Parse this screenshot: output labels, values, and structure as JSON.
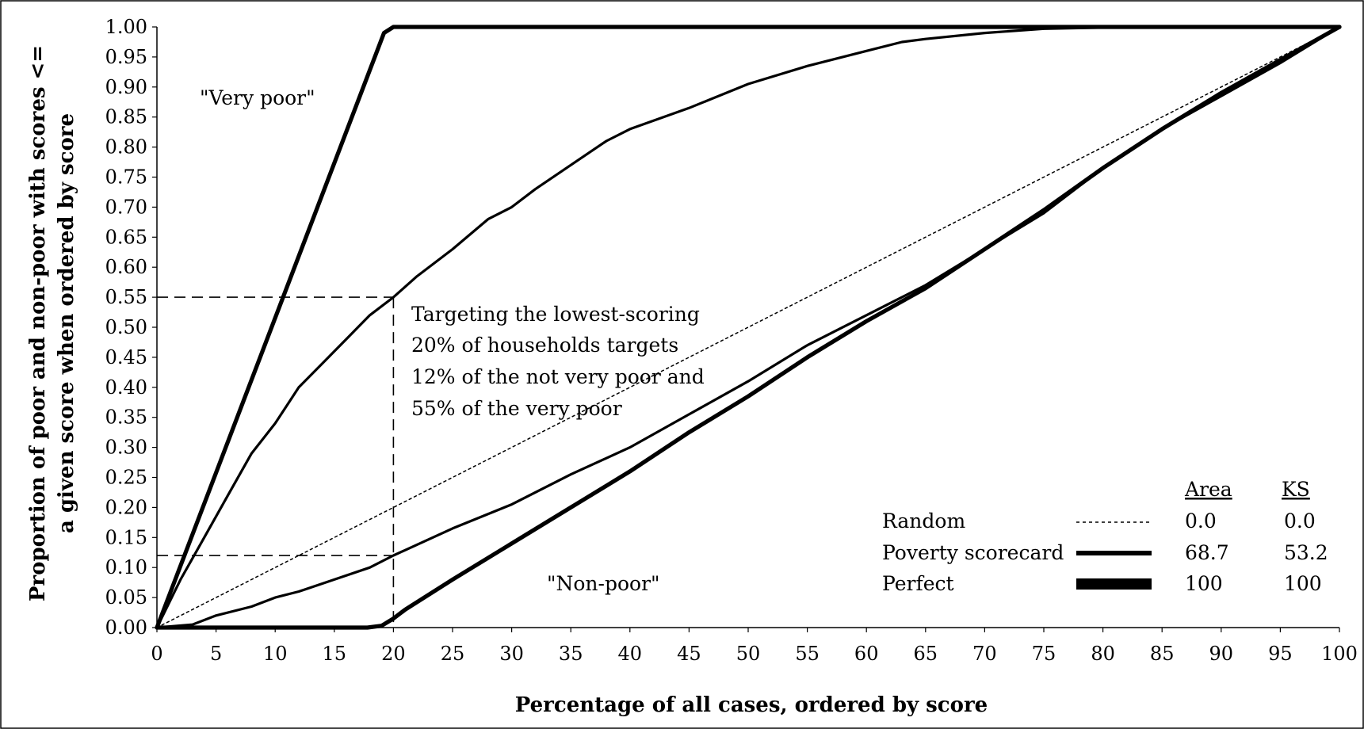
{
  "chart_data": {
    "type": "line",
    "xlabel": "Percentage of all cases, ordered by score",
    "ylabel_line1": "Proportion of poor and non-poor with scores <=",
    "ylabel_line2": "a given score when ordered by score",
    "xlim": [
      0,
      100
    ],
    "ylim": [
      0,
      1
    ],
    "x_ticks": [
      "0",
      "5",
      "10",
      "15",
      "20",
      "25",
      "30",
      "35",
      "40",
      "45",
      "50",
      "55",
      "60",
      "65",
      "70",
      "75",
      "80",
      "85",
      "90",
      "95",
      "100"
    ],
    "y_ticks": [
      "0.00",
      "0.05",
      "0.10",
      "0.15",
      "0.20",
      "0.25",
      "0.30",
      "0.35",
      "0.40",
      "0.45",
      "0.50",
      "0.55",
      "0.60",
      "0.65",
      "0.70",
      "0.75",
      "0.80",
      "0.85",
      "0.90",
      "0.95",
      "1.00"
    ],
    "series": [
      {
        "style": "dotted",
        "x": [
          0,
          100
        ],
        "y": [
          0,
          1
        ]
      },
      {
        "style": "thick",
        "x": [
          0,
          19.2,
          20,
          100
        ],
        "y": [
          0,
          0.99,
          1,
          1
        ]
      },
      {
        "style": "thick",
        "x": [
          0,
          17.8,
          19,
          20,
          21,
          25,
          30,
          35,
          40,
          45,
          50,
          55,
          60,
          65,
          70,
          75,
          80,
          85,
          90,
          95,
          100
        ],
        "y": [
          0,
          0,
          0.003,
          0.015,
          0.03,
          0.08,
          0.14,
          0.2,
          0.26,
          0.325,
          0.385,
          0.45,
          0.51,
          0.565,
          0.63,
          0.695,
          0.765,
          0.83,
          0.89,
          0.945,
          1
        ]
      },
      {
        "style": "medium",
        "x": [
          0,
          2,
          4,
          6,
          8,
          10,
          12,
          14,
          16,
          18,
          20,
          22,
          25,
          28,
          30,
          32,
          35,
          38,
          40,
          45,
          50,
          55,
          60,
          63,
          65,
          70,
          75,
          80,
          85,
          90,
          95,
          100
        ],
        "y": [
          0,
          0.08,
          0.15,
          0.22,
          0.29,
          0.34,
          0.4,
          0.44,
          0.48,
          0.52,
          0.55,
          0.585,
          0.63,
          0.68,
          0.7,
          0.73,
          0.77,
          0.81,
          0.83,
          0.865,
          0.905,
          0.935,
          0.96,
          0.975,
          0.98,
          0.99,
          0.997,
          0.999,
          1,
          1,
          1,
          1
        ]
      },
      {
        "style": "medium",
        "x": [
          0,
          3,
          5,
          8,
          10,
          12,
          15,
          18,
          20,
          25,
          30,
          35,
          40,
          45,
          50,
          55,
          60,
          65,
          70,
          75,
          80,
          85,
          90,
          95,
          100
        ],
        "y": [
          0,
          0.005,
          0.02,
          0.035,
          0.05,
          0.06,
          0.08,
          0.1,
          0.12,
          0.165,
          0.205,
          0.255,
          0.3,
          0.355,
          0.41,
          0.47,
          0.52,
          0.57,
          0.63,
          0.69,
          0.765,
          0.83,
          0.885,
          0.94,
          1
        ]
      }
    ],
    "guides": [
      {
        "x": 20,
        "y": 0.55
      },
      {
        "x": 20,
        "y": 0.12
      }
    ],
    "annotations": {
      "very_poor": "\"Very poor\"",
      "non_poor": "\"Non-poor\"",
      "targeting": [
        "Targeting the lowest-scoring",
        "20% of households targets",
        "12% of the not very poor and",
        "55% of the very poor"
      ]
    },
    "legend": {
      "header_area": "Area",
      "header_ks": "KS",
      "rows": [
        {
          "label": "Random",
          "style": "dotted",
          "area": "0.0",
          "ks": "0.0"
        },
        {
          "label": "Poverty scorecard",
          "style": "medium",
          "area": "68.7",
          "ks": "53.2"
        },
        {
          "label": "Perfect",
          "style": "thick",
          "area": "100",
          "ks": "100"
        }
      ]
    }
  }
}
